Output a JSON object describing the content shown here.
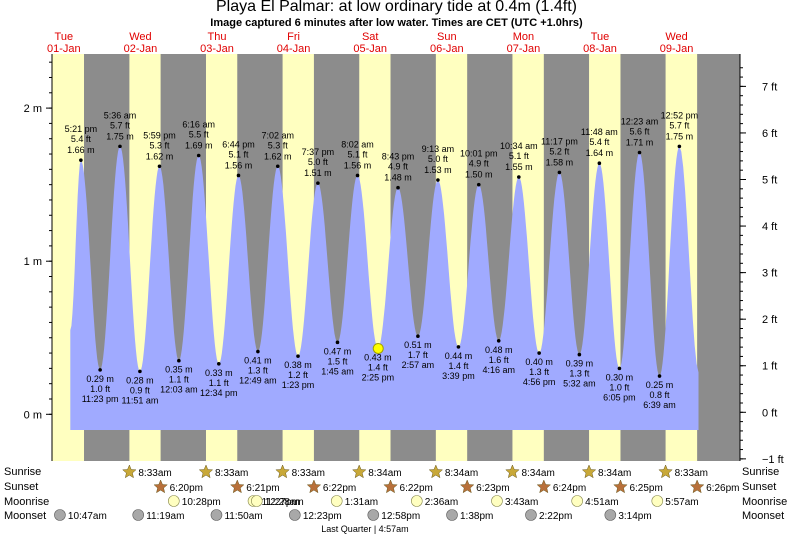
{
  "title": "Playa El Palmar: at low  ordinary tide at 0.4m (1.4ft)",
  "subtitle": "Image captured 6 minutes after low water. Times are CET (UTC +1.0hrs)",
  "chart_data": {
    "type": "area",
    "y_left_unit": "m",
    "y_left_ticks": [
      {
        "v": 0,
        "label": "0 m"
      },
      {
        "v": 1,
        "label": "1 m"
      },
      {
        "v": 2,
        "label": "2 m"
      }
    ],
    "y_right_ticks": [
      {
        "v": -1,
        "label": "−1 ft"
      },
      {
        "v": 0,
        "label": "0 ft"
      },
      {
        "v": 1,
        "label": "1 ft"
      },
      {
        "v": 2,
        "label": "2 ft"
      },
      {
        "v": 3,
        "label": "3 ft"
      },
      {
        "v": 4,
        "label": "4 ft"
      },
      {
        "v": 5,
        "label": "5 ft"
      },
      {
        "v": 6,
        "label": "6 ft"
      },
      {
        "v": 7,
        "label": "7 ft"
      }
    ],
    "days": [
      {
        "dow": "Tue",
        "date": "01-Jan"
      },
      {
        "dow": "Wed",
        "date": "02-Jan"
      },
      {
        "dow": "Thu",
        "date": "03-Jan"
      },
      {
        "dow": "Fri",
        "date": "04-Jan"
      },
      {
        "dow": "Sat",
        "date": "05-Jan"
      },
      {
        "dow": "Sun",
        "date": "06-Jan"
      },
      {
        "dow": "Mon",
        "date": "07-Jan"
      },
      {
        "dow": "Tue",
        "date": "08-Jan"
      },
      {
        "dow": "Wed",
        "date": "09-Jan"
      }
    ],
    "tides": [
      {
        "type": "high",
        "day": 0,
        "time": "5:21 pm",
        "ft": "5.4 ft",
        "m": 1.66
      },
      {
        "type": "low",
        "day": 0,
        "time": "11:23 pm",
        "ft": "1.0 ft",
        "m": 0.29
      },
      {
        "type": "high",
        "day": 1,
        "time": "5:36 am",
        "ft": "5.7 ft",
        "m": 1.75
      },
      {
        "type": "low",
        "day": 1,
        "time": "11:51 am",
        "ft": "0.9 ft",
        "m": 0.28
      },
      {
        "type": "high",
        "day": 1,
        "time": "5:59 pm",
        "ft": "5.3 ft",
        "m": 1.62
      },
      {
        "type": "low",
        "day": 2,
        "time": "12:03 am",
        "ft": "1.1 ft",
        "m": 0.35
      },
      {
        "type": "high",
        "day": 2,
        "time": "6:16 am",
        "ft": "5.5 ft",
        "m": 1.69
      },
      {
        "type": "low",
        "day": 2,
        "time": "12:34 pm",
        "ft": "1.1 ft",
        "m": 0.33
      },
      {
        "type": "high",
        "day": 2,
        "time": "6:44 pm",
        "ft": "5.1 ft",
        "m": 1.56
      },
      {
        "type": "low",
        "day": 3,
        "time": "12:49 am",
        "ft": "1.3 ft",
        "m": 0.41
      },
      {
        "type": "high",
        "day": 3,
        "time": "7:02 am",
        "ft": "5.3 ft",
        "m": 1.62
      },
      {
        "type": "low",
        "day": 3,
        "time": "1:23 pm",
        "ft": "1.2 ft",
        "m": 0.38
      },
      {
        "type": "high",
        "day": 3,
        "time": "7:37 pm",
        "ft": "5.0 ft",
        "m": 1.51
      },
      {
        "type": "low",
        "day": 4,
        "time": "1:45 am",
        "ft": "1.5 ft",
        "m": 0.47
      },
      {
        "type": "high",
        "day": 4,
        "time": "8:02 am",
        "ft": "5.1 ft",
        "m": 1.56
      },
      {
        "type": "low",
        "day": 4,
        "time": "2:25 pm",
        "ft": "1.4 ft",
        "m": 0.43
      },
      {
        "type": "high",
        "day": 4,
        "time": "8:43 pm",
        "ft": "4.9 ft",
        "m": 1.48
      },
      {
        "type": "low",
        "day": 5,
        "time": "2:57 am",
        "ft": "1.7 ft",
        "m": 0.51
      },
      {
        "type": "high",
        "day": 5,
        "time": "9:13 am",
        "ft": "5.0 ft",
        "m": 1.53
      },
      {
        "type": "low",
        "day": 5,
        "time": "3:39 pm",
        "ft": "1.4 ft",
        "m": 0.44
      },
      {
        "type": "high",
        "day": 5,
        "time": "10:01 pm",
        "ft": "4.9 ft",
        "m": 1.5
      },
      {
        "type": "low",
        "day": 6,
        "time": "4:16 am",
        "ft": "1.6 ft",
        "m": 0.48
      },
      {
        "type": "high",
        "day": 6,
        "time": "10:34 am",
        "ft": "5.1 ft",
        "m": 1.55
      },
      {
        "type": "low",
        "day": 6,
        "time": "4:56 pm",
        "ft": "1.3 ft",
        "m": 0.4
      },
      {
        "type": "high",
        "day": 6,
        "time": "11:17 pm",
        "ft": "5.2 ft",
        "m": 1.58
      },
      {
        "type": "low",
        "day": 7,
        "time": "5:32 am",
        "ft": "1.3 ft",
        "m": 0.39
      },
      {
        "type": "high",
        "day": 7,
        "time": "11:48 am",
        "ft": "5.4 ft",
        "m": 1.64
      },
      {
        "type": "low",
        "day": 7,
        "time": "6:05 pm",
        "ft": "1.0 ft",
        "m": 0.3
      },
      {
        "type": "high",
        "day": 8,
        "time": "12:23 am",
        "ft": "5.6 ft",
        "m": 1.71
      },
      {
        "type": "low",
        "day": 8,
        "time": "6:39 am",
        "ft": "0.8 ft",
        "m": 0.25
      },
      {
        "type": "high",
        "day": 8,
        "time": "12:52 pm",
        "ft": "5.7 ft",
        "m": 1.75
      }
    ],
    "current_level_m": 0.43,
    "sun_labels": {
      "sunrise": "Sunrise",
      "sunset": "Sunset",
      "moonrise": "Moonrise",
      "moonset": "Moonset"
    },
    "sunrise": [
      {
        "day": 1,
        "time": "8:33am"
      },
      {
        "day": 2,
        "time": "8:33am"
      },
      {
        "day": 3,
        "time": "8:33am"
      },
      {
        "day": 4,
        "time": "8:34am"
      },
      {
        "day": 5,
        "time": "8:34am"
      },
      {
        "day": 6,
        "time": "8:34am"
      },
      {
        "day": 7,
        "time": "8:34am"
      },
      {
        "day": 8,
        "time": "8:33am"
      }
    ],
    "sunset": [
      {
        "day": 1,
        "time": "6:20pm"
      },
      {
        "day": 2,
        "time": "6:21pm"
      },
      {
        "day": 3,
        "time": "6:22pm"
      },
      {
        "day": 4,
        "time": "6:22pm"
      },
      {
        "day": 5,
        "time": "6:23pm"
      },
      {
        "day": 6,
        "time": "6:24pm"
      },
      {
        "day": 7,
        "time": "6:25pm"
      },
      {
        "day": 8,
        "time": "6:26pm"
      }
    ],
    "moonrise": [
      {
        "day": 1,
        "time": "10:28pm"
      },
      {
        "day": 2,
        "time": "11:27pm"
      },
      {
        "day": 3,
        "time": "12:28am"
      },
      {
        "day": 4,
        "time": "1:31am"
      },
      {
        "day": 5,
        "time": "2:36am"
      },
      {
        "day": 6,
        "time": "3:43am"
      },
      {
        "day": 7,
        "time": "4:51am"
      },
      {
        "day": 8,
        "time": "5:57am"
      }
    ],
    "moonset": [
      {
        "day": 0,
        "time": "10:47am"
      },
      {
        "day": 1,
        "time": "11:19am"
      },
      {
        "day": 2,
        "time": "11:50am"
      },
      {
        "day": 3,
        "time": "12:23pm"
      },
      {
        "day": 4,
        "time": "12:58pm"
      },
      {
        "day": 5,
        "time": "1:38pm"
      },
      {
        "day": 6,
        "time": "2:22pm"
      },
      {
        "day": 7,
        "time": "3:14pm"
      }
    ],
    "moon_phase": "Last Quarter | 4:57am",
    "colors": {
      "day": "#ffffc0",
      "night": "#8c8c8c",
      "water": "#a0aaff",
      "day_label": "#e00000",
      "sunrise_star": "#c8a838",
      "sunset_star": "#b8703a",
      "moon_icon": "#ffffc0",
      "moon_icon_dark": "#a8a8a8"
    }
  }
}
